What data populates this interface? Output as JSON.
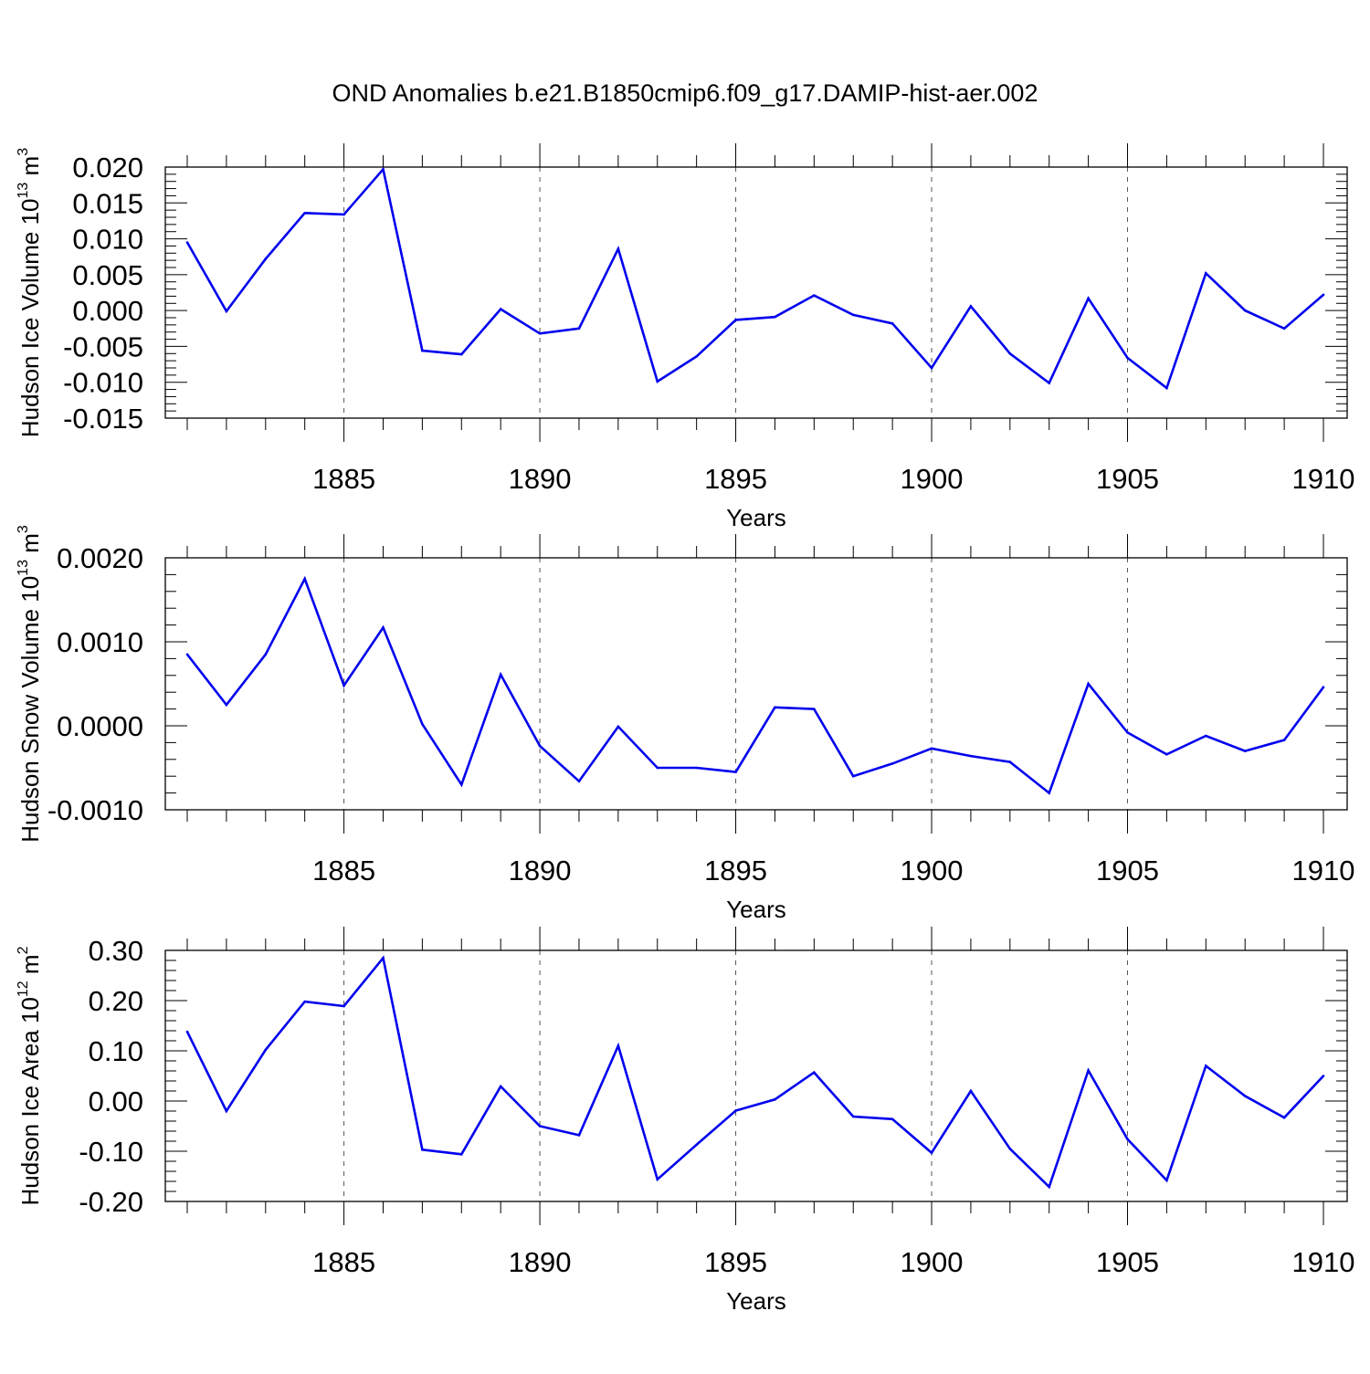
{
  "title": "OND Anomalies b.e21.B1850cmip6.f09_g17.DAMIP-hist-aer.002",
  "colors": {
    "line": "#0000ee",
    "frame": "#000000",
    "grid": "#555555"
  },
  "chart_data": [
    {
      "type": "line",
      "xlabel": "Years",
      "ylabel": {
        "text": "Hudson Ice Volume 10",
        "exp": "13",
        "unit": " m",
        "unit_exp": "3"
      },
      "xlim": [
        1881,
        1910
      ],
      "ylim": [
        -0.015,
        0.02
      ],
      "x_ticks": [
        1885,
        1890,
        1895,
        1900,
        1905,
        1910
      ],
      "x_tick_labels": [
        "1885",
        "1890",
        "1895",
        "1900",
        "1905",
        "1910"
      ],
      "y_ticks": [
        0.02,
        0.015,
        0.01,
        0.005,
        0.0,
        -0.005,
        -0.01,
        -0.015
      ],
      "y_tick_labels": [
        "0.020",
        "0.015",
        "0.010",
        "0.005",
        "0.000",
        "-0.005",
        "-0.010",
        "-0.015"
      ],
      "grid": "dashed vertical lines at major x ticks",
      "x": [
        1881,
        1882,
        1883,
        1884,
        1885,
        1886,
        1887,
        1888,
        1889,
        1890,
        1891,
        1892,
        1893,
        1894,
        1895,
        1896,
        1897,
        1898,
        1899,
        1900,
        1901,
        1902,
        1903,
        1904,
        1905,
        1906,
        1907,
        1908,
        1909,
        1910
      ],
      "values": [
        0.0095,
        -0.0001,
        0.0072,
        0.0136,
        0.0134,
        0.0197,
        -0.0056,
        -0.0061,
        0.0002,
        -0.0032,
        -0.0025,
        0.0086,
        -0.0099,
        -0.0064,
        -0.0013,
        -0.0009,
        0.0021,
        -0.0006,
        -0.0018,
        -0.008,
        0.0006,
        -0.006,
        -0.0101,
        0.0017,
        -0.0066,
        -0.0108,
        0.0052,
        0.0,
        -0.0025,
        0.0022
      ]
    },
    {
      "type": "line",
      "xlabel": "Years",
      "ylabel": {
        "text": "Hudson Snow Volume 10",
        "exp": "13",
        "unit": " m",
        "unit_exp": "3"
      },
      "xlim": [
        1881,
        1910
      ],
      "ylim": [
        -0.001,
        0.002
      ],
      "x_ticks": [
        1885,
        1890,
        1895,
        1900,
        1905,
        1910
      ],
      "x_tick_labels": [
        "1885",
        "1890",
        "1895",
        "1900",
        "1905",
        "1910"
      ],
      "y_ticks": [
        0.002,
        0.001,
        0.0,
        -0.001
      ],
      "y_tick_labels": [
        "0.0020",
        "0.0010",
        "0.0000",
        "-0.0010"
      ],
      "grid": "dashed vertical lines at major x ticks",
      "x": [
        1881,
        1882,
        1883,
        1884,
        1885,
        1886,
        1887,
        1888,
        1889,
        1890,
        1891,
        1892,
        1893,
        1894,
        1895,
        1896,
        1897,
        1898,
        1899,
        1900,
        1901,
        1902,
        1903,
        1904,
        1905,
        1906,
        1907,
        1908,
        1909,
        1910
      ],
      "values": [
        0.00085,
        0.00025,
        0.00085,
        0.00175,
        0.00048,
        0.00117,
        2e-05,
        -0.0007,
        0.00061,
        -0.00024,
        -0.00066,
        -1e-05,
        -0.0005,
        -0.0005,
        -0.00055,
        0.00022,
        0.0002,
        -0.0006,
        -0.00045,
        -0.00027,
        -0.00036,
        -0.00043,
        -0.0008,
        0.0005,
        -8e-05,
        -0.00034,
        -0.00012,
        -0.0003,
        -0.00017,
        0.00046
      ]
    },
    {
      "type": "line",
      "xlabel": "Years",
      "ylabel": {
        "text": "Hudson Ice Area 10",
        "exp": "12",
        "unit": " m",
        "unit_exp": "2"
      },
      "xlim": [
        1881,
        1910
      ],
      "ylim": [
        -0.2,
        0.3
      ],
      "x_ticks": [
        1885,
        1890,
        1895,
        1900,
        1905,
        1910
      ],
      "x_tick_labels": [
        "1885",
        "1890",
        "1895",
        "1900",
        "1905",
        "1910"
      ],
      "y_ticks": [
        0.3,
        0.2,
        0.1,
        0.0,
        -0.1,
        -0.2
      ],
      "y_tick_labels": [
        "0.30",
        "0.20",
        "0.10",
        "0.00",
        "-0.10",
        "-0.20"
      ],
      "grid": "dashed vertical lines at major x ticks",
      "x": [
        1881,
        1882,
        1883,
        1884,
        1885,
        1886,
        1887,
        1888,
        1889,
        1890,
        1891,
        1892,
        1893,
        1894,
        1895,
        1896,
        1897,
        1898,
        1899,
        1900,
        1901,
        1902,
        1903,
        1904,
        1905,
        1906,
        1907,
        1908,
        1909,
        1910
      ],
      "values": [
        0.138,
        -0.02,
        0.102,
        0.198,
        0.189,
        0.285,
        -0.097,
        -0.106,
        0.029,
        -0.05,
        -0.068,
        0.11,
        -0.156,
        -0.087,
        -0.019,
        0.003,
        0.057,
        -0.031,
        -0.036,
        -0.103,
        0.02,
        -0.095,
        -0.171,
        0.061,
        -0.076,
        -0.158,
        0.07,
        0.01,
        -0.033,
        0.05
      ]
    }
  ]
}
